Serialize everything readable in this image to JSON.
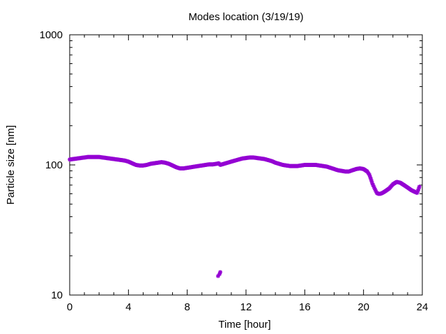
{
  "chart_data": {
    "type": "scatter",
    "title": "Modes location (3/19/19)",
    "xlabel": "Time [hour]",
    "ylabel": "Particle size [nm]",
    "xlim": [
      0,
      24
    ],
    "ylim": [
      10,
      1000
    ],
    "yscale": "log",
    "xticks": [
      0,
      4,
      8,
      12,
      16,
      20,
      24
    ],
    "yticks": [
      10,
      100,
      1000
    ],
    "grid": false,
    "legend": "none",
    "marker_color": "#9400d3",
    "series": [
      {
        "x": [
          0.0,
          0.25,
          0.5,
          0.75,
          1.0,
          1.25,
          1.5,
          1.75,
          2.0,
          2.25,
          2.5,
          2.75,
          3.0,
          3.25,
          3.5,
          3.75,
          4.0,
          4.25,
          4.5,
          4.75,
          5.0,
          5.25,
          5.5,
          5.75,
          6.0,
          6.25,
          6.5,
          6.75,
          7.0,
          7.25,
          7.5,
          7.75,
          8.0,
          8.25,
          8.5,
          8.75,
          9.0,
          9.25,
          9.5,
          9.75,
          10.0,
          10.15,
          10.25,
          10.5,
          10.75,
          11.0,
          11.25,
          11.5,
          11.75,
          12.0,
          12.25,
          12.5,
          12.75,
          13.0,
          13.25,
          13.5,
          13.75,
          14.0,
          14.25,
          14.5,
          14.75,
          15.0,
          15.25,
          15.5,
          15.75,
          16.0,
          16.25,
          16.5,
          16.75,
          17.0,
          17.25,
          17.5,
          17.75,
          18.0,
          18.25,
          18.5,
          18.75,
          19.0,
          19.25,
          19.5,
          19.75,
          20.0,
          20.25,
          20.4,
          20.5,
          20.6,
          20.75,
          20.9,
          21.0,
          21.15,
          21.3,
          21.5,
          21.75,
          22.0,
          22.25,
          22.5,
          22.75,
          23.0,
          23.25,
          23.5,
          23.65,
          23.8,
          10.1,
          10.2,
          10.25
        ],
        "y": [
          110,
          111,
          112,
          113,
          114,
          115,
          115,
          115,
          115,
          114,
          113,
          112,
          111,
          110,
          109,
          108,
          106,
          103,
          100,
          99,
          99,
          100,
          102,
          103,
          104,
          105,
          104,
          102,
          99,
          96,
          94,
          94,
          95,
          96,
          97,
          98,
          99,
          100,
          101,
          101,
          102,
          103,
          100,
          102,
          104,
          106,
          108,
          110,
          112,
          113,
          114,
          114,
          113,
          112,
          111,
          109,
          107,
          104,
          102,
          100,
          99,
          98,
          98,
          98,
          99,
          100,
          100,
          100,
          100,
          99,
          98,
          97,
          95,
          93,
          91,
          90,
          89,
          89,
          91,
          93,
          94,
          93,
          89,
          84,
          78,
          72,
          66,
          61,
          60,
          60,
          61,
          63,
          66,
          71,
          74,
          73,
          70,
          67,
          64,
          62,
          61,
          68,
          14,
          14.5,
          15
        ]
      }
    ]
  }
}
